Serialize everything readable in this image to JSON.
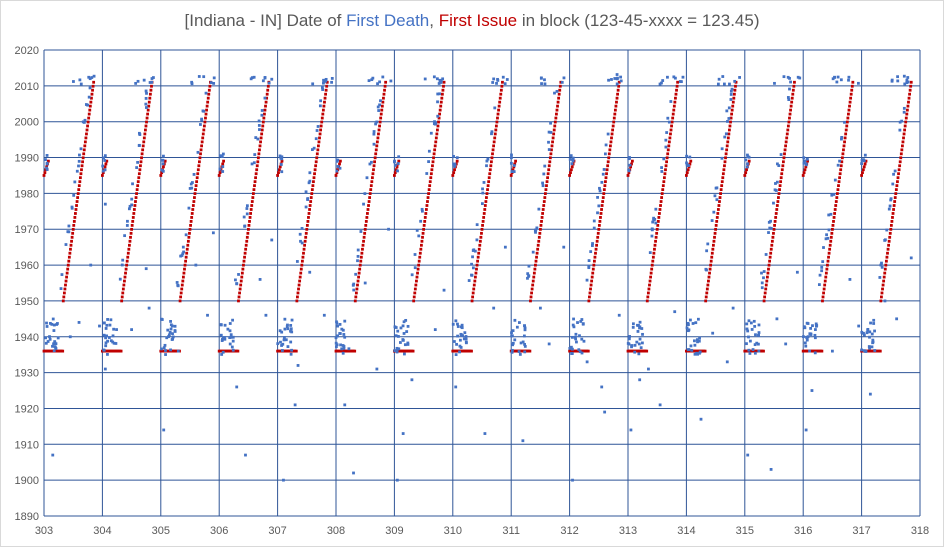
{
  "chart_data": {
    "type": "scatter",
    "title": {
      "prefix": "[Indiana - IN] Date of ",
      "series_a": "First Death",
      "separator": ", ",
      "series_b": "First Issue",
      "suffix": " in block (123-45-xxxx = 123.45)"
    },
    "xlim": [
      303,
      318
    ],
    "ylim": [
      1890,
      2020
    ],
    "x_ticks": [
      303,
      304,
      305,
      306,
      307,
      308,
      309,
      310,
      311,
      312,
      313,
      314,
      315,
      316,
      317,
      318
    ],
    "y_ticks": [
      1890,
      1900,
      1910,
      1920,
      1930,
      1940,
      1950,
      1960,
      1970,
      1980,
      1990,
      2000,
      2010,
      2020
    ],
    "grid": true,
    "legend": "none",
    "colors": {
      "first_death": "#4472c4",
      "first_issue": "#c00000",
      "grid": "#2f5597"
    },
    "series": [
      {
        "name": "First Death",
        "pattern": "Per group N (x from N to N+1): scattered deaths 1935-1945 early in block, rising through ~1950-2010, cluster near 2011-2012; sparse outliers 1900-1930.",
        "outliers": [
          [
            303.15,
            1907
          ],
          [
            303.45,
            1940
          ],
          [
            303.6,
            1944
          ],
          [
            303.8,
            1960
          ],
          [
            303.95,
            1943
          ],
          [
            304.05,
            1931
          ],
          [
            304.05,
            1977
          ],
          [
            304.5,
            1942
          ],
          [
            304.75,
            1959
          ],
          [
            304.8,
            1948
          ],
          [
            305.05,
            1914
          ],
          [
            305.3,
            1936
          ],
          [
            305.6,
            1960
          ],
          [
            305.8,
            1946
          ],
          [
            305.9,
            1969
          ],
          [
            306.3,
            1926
          ],
          [
            306.45,
            1907
          ],
          [
            306.7,
            1956
          ],
          [
            306.8,
            1946
          ],
          [
            306.9,
            1967
          ],
          [
            307.1,
            1900
          ],
          [
            307.3,
            1921
          ],
          [
            307.35,
            1932
          ],
          [
            307.55,
            1958
          ],
          [
            307.8,
            1946
          ],
          [
            308.15,
            1921
          ],
          [
            308.3,
            1902
          ],
          [
            308.5,
            1955
          ],
          [
            308.7,
            1931
          ],
          [
            308.9,
            1970
          ],
          [
            309.05,
            1900
          ],
          [
            309.15,
            1913
          ],
          [
            309.3,
            1928
          ],
          [
            309.7,
            1942
          ],
          [
            309.85,
            1953
          ],
          [
            310.05,
            1926
          ],
          [
            310.55,
            1913
          ],
          [
            310.7,
            1948
          ],
          [
            310.9,
            1965
          ],
          [
            311.2,
            1911
          ],
          [
            311.5,
            1948
          ],
          [
            311.65,
            1938
          ],
          [
            311.9,
            1965
          ],
          [
            312.05,
            1900
          ],
          [
            312.3,
            1933
          ],
          [
            312.55,
            1926
          ],
          [
            312.6,
            1919
          ],
          [
            312.85,
            1946
          ],
          [
            313.05,
            1914
          ],
          [
            313.2,
            1928
          ],
          [
            313.35,
            1931
          ],
          [
            313.55,
            1921
          ],
          [
            313.8,
            1947
          ],
          [
            314.25,
            1917
          ],
          [
            314.45,
            1941
          ],
          [
            314.7,
            1933
          ],
          [
            314.8,
            1948
          ],
          [
            315.05,
            1907
          ],
          [
            315.45,
            1903
          ],
          [
            315.55,
            1945
          ],
          [
            315.7,
            1938
          ],
          [
            315.9,
            1958
          ],
          [
            316.05,
            1914
          ],
          [
            316.15,
            1925
          ],
          [
            316.5,
            1936
          ],
          [
            316.8,
            1956
          ],
          [
            316.95,
            1943
          ],
          [
            317.15,
            1924
          ],
          [
            317.4,
            1950
          ],
          [
            317.6,
            1945
          ],
          [
            317.85,
            1962
          ]
        ]
      },
      {
        "name": "First Issue",
        "pattern": "Per group N: horizontal run at 1936 from N to N+0.33, then steady rise from 1950 to 2011 over N+0.33 to N+0.85 (continues from ~1986 at the start of the next group)."
      }
    ]
  }
}
